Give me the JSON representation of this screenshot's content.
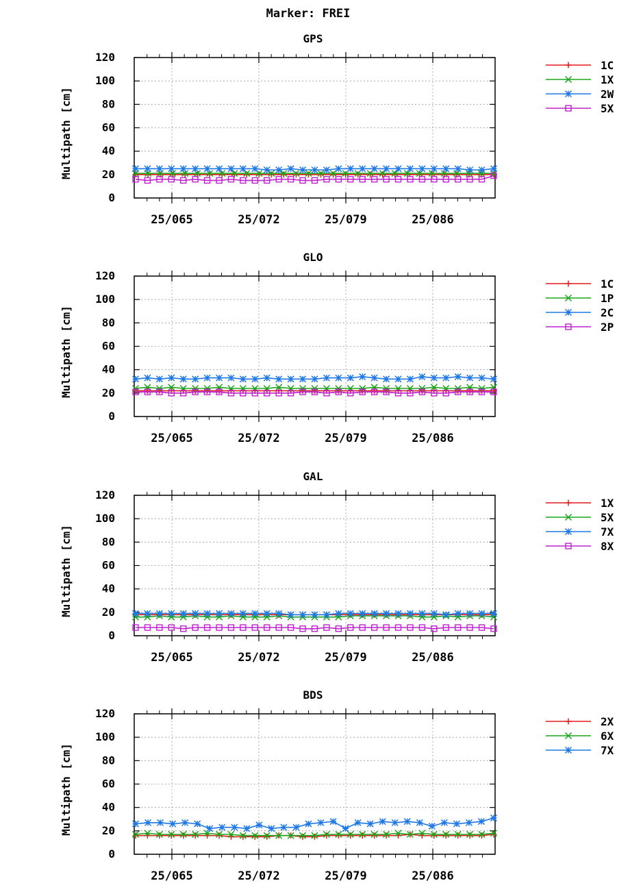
{
  "title": "Marker: FREI",
  "x_ticks": [
    "25/065",
    "25/072",
    "25/079",
    "25/086"
  ],
  "chart_data": [
    {
      "type": "line",
      "title": "GPS",
      "ylabel": "Multipath [cm]",
      "ylim": [
        0,
        120
      ],
      "yticks": [
        0,
        20,
        40,
        60,
        80,
        100,
        120
      ],
      "grid": true,
      "legend_position": "right",
      "series": [
        {
          "name": "1C",
          "color": "#e41a1c",
          "marker": "plus",
          "values": [
            20,
            20,
            20,
            20,
            20,
            20,
            20,
            20,
            20,
            20,
            20,
            20,
            20,
            20,
            20,
            20,
            20,
            20,
            20,
            20,
            20,
            20,
            20,
            20,
            20,
            20,
            20,
            20,
            20,
            20
          ]
        },
        {
          "name": "1X",
          "color": "#1aa51a",
          "marker": "x",
          "values": [
            21,
            21,
            21,
            21,
            21,
            21,
            21,
            21,
            21,
            21,
            21,
            21,
            21,
            21,
            21,
            21,
            21,
            21,
            21,
            21,
            21,
            21,
            21,
            21,
            21,
            21,
            21,
            21,
            21,
            21
          ]
        },
        {
          "name": "2W",
          "color": "#1e78e6",
          "marker": "star",
          "values": [
            25,
            25,
            25,
            25,
            25,
            25,
            25,
            25,
            25,
            25,
            25,
            24,
            24,
            25,
            24,
            24,
            24,
            25,
            25,
            25,
            25,
            25,
            25,
            25,
            25,
            25,
            25,
            25,
            24,
            24,
            25
          ]
        },
        {
          "name": "5X",
          "color": "#c020d0",
          "marker": "square",
          "values": [
            16,
            15,
            16,
            16,
            15,
            16,
            15,
            15,
            16,
            15,
            15,
            15,
            16,
            16,
            15,
            15,
            16,
            16,
            16,
            16,
            16,
            16,
            16,
            16,
            16,
            16,
            16,
            16,
            16,
            16,
            19
          ]
        }
      ]
    },
    {
      "type": "line",
      "title": "GLO",
      "ylabel": "Multipath [cm]",
      "ylim": [
        0,
        120
      ],
      "yticks": [
        0,
        20,
        40,
        60,
        80,
        100,
        120
      ],
      "grid": true,
      "legend_position": "right",
      "series": [
        {
          "name": "1C",
          "color": "#e41a1c",
          "marker": "plus",
          "values": [
            22,
            22,
            22,
            22,
            22,
            22,
            22,
            22,
            22,
            22,
            22,
            22,
            22,
            22,
            22,
            22,
            22,
            22,
            22,
            22,
            22,
            22,
            22,
            22,
            22,
            22,
            22,
            22,
            22,
            22,
            22
          ]
        },
        {
          "name": "1P",
          "color": "#1aa51a",
          "marker": "x",
          "values": [
            24,
            25,
            24,
            25,
            24,
            24,
            24,
            25,
            24,
            24,
            24,
            24,
            25,
            24,
            24,
            24,
            24,
            24,
            24,
            24,
            25,
            24,
            24,
            24,
            24,
            25,
            24,
            24,
            25,
            24,
            25
          ]
        },
        {
          "name": "2C",
          "color": "#1e78e6",
          "marker": "star",
          "values": [
            32,
            33,
            32,
            33,
            32,
            32,
            33,
            33,
            33,
            32,
            32,
            33,
            32,
            32,
            32,
            32,
            33,
            33,
            33,
            34,
            33,
            32,
            32,
            32,
            34,
            33,
            33,
            34,
            33,
            33,
            32
          ]
        },
        {
          "name": "2P",
          "color": "#c020d0",
          "marker": "square",
          "values": [
            21,
            21,
            21,
            20,
            20,
            21,
            21,
            21,
            20,
            20,
            20,
            20,
            20,
            20,
            21,
            21,
            20,
            21,
            20,
            21,
            21,
            21,
            20,
            20,
            21,
            20,
            20,
            21,
            21,
            21,
            21
          ]
        }
      ]
    },
    {
      "type": "line",
      "title": "GAL",
      "ylabel": "Multipath [cm]",
      "ylim": [
        0,
        120
      ],
      "yticks": [
        0,
        20,
        40,
        60,
        80,
        100,
        120
      ],
      "grid": true,
      "legend_position": "right",
      "series": [
        {
          "name": "1X",
          "color": "#e41a1c",
          "marker": "plus",
          "values": [
            18,
            18,
            18,
            18,
            18,
            18,
            18,
            18,
            18,
            18,
            18,
            18,
            18,
            18,
            18,
            18,
            18,
            18,
            18,
            18,
            18,
            18,
            18,
            18,
            18,
            18,
            18,
            18,
            18,
            18,
            18
          ]
        },
        {
          "name": "5X",
          "color": "#1aa51a",
          "marker": "x",
          "values": [
            16,
            16,
            17,
            16,
            16,
            17,
            16,
            16,
            17,
            16,
            16,
            16,
            17,
            16,
            16,
            16,
            16,
            16,
            17,
            17,
            17,
            17,
            17,
            17,
            16,
            16,
            17,
            16,
            17,
            17,
            16
          ]
        },
        {
          "name": "7X",
          "color": "#1e78e6",
          "marker": "star",
          "values": [
            19,
            19,
            19,
            19,
            19,
            19,
            19,
            19,
            19,
            19,
            19,
            19,
            19,
            18,
            18,
            18,
            18,
            19,
            19,
            19,
            19,
            19,
            19,
            19,
            19,
            19,
            18,
            19,
            19,
            19,
            19
          ]
        },
        {
          "name": "8X",
          "color": "#c020d0",
          "marker": "square",
          "values": [
            7,
            7,
            7,
            7,
            6,
            7,
            7,
            7,
            7,
            7,
            7,
            7,
            7,
            7,
            6,
            6,
            7,
            6,
            7,
            7,
            7,
            7,
            7,
            7,
            7,
            6,
            7,
            7,
            7,
            7,
            6
          ]
        }
      ]
    },
    {
      "type": "line",
      "title": "BDS",
      "ylabel": "Multipath [cm]",
      "ylim": [
        0,
        120
      ],
      "yticks": [
        0,
        20,
        40,
        60,
        80,
        100,
        120
      ],
      "grid": true,
      "legend_position": "right",
      "series": [
        {
          "name": "2X",
          "color": "#e41a1c",
          "marker": "plus",
          "values": [
            16,
            16,
            16,
            16,
            16,
            16,
            16,
            16,
            15,
            15,
            15,
            15,
            16,
            16,
            15,
            15,
            16,
            16,
            16,
            16,
            16,
            16,
            16,
            17,
            16,
            16,
            16,
            16,
            16,
            16,
            17
          ]
        },
        {
          "name": "6X",
          "color": "#1aa51a",
          "marker": "x",
          "values": [
            17,
            18,
            17,
            17,
            17,
            17,
            18,
            17,
            17,
            16,
            16,
            16,
            16,
            16,
            16,
            16,
            17,
            17,
            17,
            17,
            17,
            17,
            18,
            17,
            18,
            17,
            17,
            17,
            17,
            17,
            18
          ]
        },
        {
          "name": "7X",
          "color": "#1e78e6",
          "marker": "star",
          "values": [
            26,
            27,
            27,
            26,
            27,
            26,
            22,
            23,
            23,
            22,
            25,
            22,
            23,
            23,
            26,
            27,
            28,
            22,
            27,
            26,
            28,
            27,
            28,
            27,
            24,
            27,
            26,
            27,
            28,
            31
          ]
        }
      ]
    }
  ]
}
